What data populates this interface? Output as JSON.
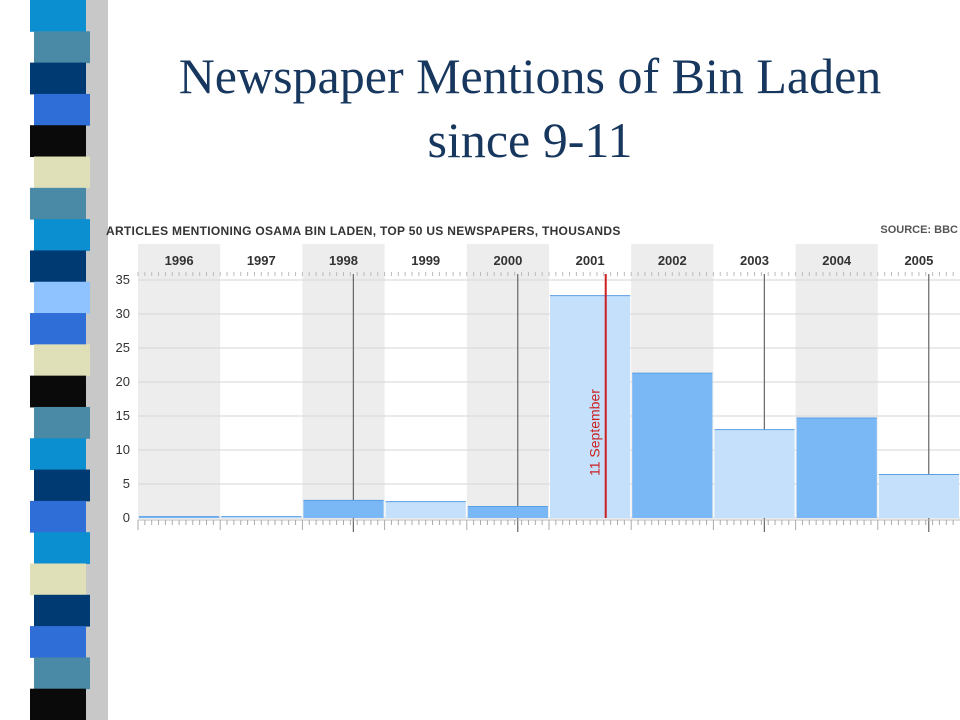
{
  "slide": {
    "title": "Newspaper Mentions of Bin Laden since 9-11"
  },
  "decor": {
    "strip_colors": [
      "#0c8fd0",
      "#4a8aa6",
      "#003a72",
      "#2e6ed6",
      "#0a0a0a",
      "#e0e0b8",
      "#4a8aa6",
      "#0c8fd0",
      "#003a72",
      "#8fc3ff",
      "#2e6ed6",
      "#e0e0b8",
      "#0a0a0a",
      "#4a8aa6",
      "#0c8fd0",
      "#003a72",
      "#2e6ed6",
      "#0c8fd0",
      "#e0e0b8",
      "#003a72",
      "#2e6ed6",
      "#4a8aa6",
      "#0a0a0a"
    ]
  },
  "chart_data": {
    "type": "bar",
    "title": "ARTICLES MENTIONING OSAMA BIN LADEN, TOP 50 US NEWSPAPERS, THOUSANDS",
    "source": "SOURCE: BBC",
    "categories": [
      "1996",
      "1997",
      "1998",
      "1999",
      "2000",
      "2001",
      "2002",
      "2003",
      "2004",
      "2005"
    ],
    "values": [
      0.2,
      0.2,
      2.6,
      2.4,
      1.7,
      32.7,
      21.3,
      13.0,
      14.7,
      6.4
    ],
    "ylim": [
      0,
      35
    ],
    "yticks": [
      0,
      5,
      10,
      15,
      20,
      25,
      30,
      35
    ],
    "grid": true,
    "colors": {
      "bar_dark": "#79b8f5",
      "bar_light": "#c4e0fb",
      "band_shade": "#ededed",
      "marker": "#cc1f1f"
    },
    "bar_shades": [
      "dark",
      "light",
      "dark",
      "light",
      "dark",
      "light",
      "dark",
      "light",
      "dark",
      "light"
    ],
    "annotation": {
      "label": "11 September",
      "year": "2001",
      "position_in_year": 0.69
    }
  }
}
